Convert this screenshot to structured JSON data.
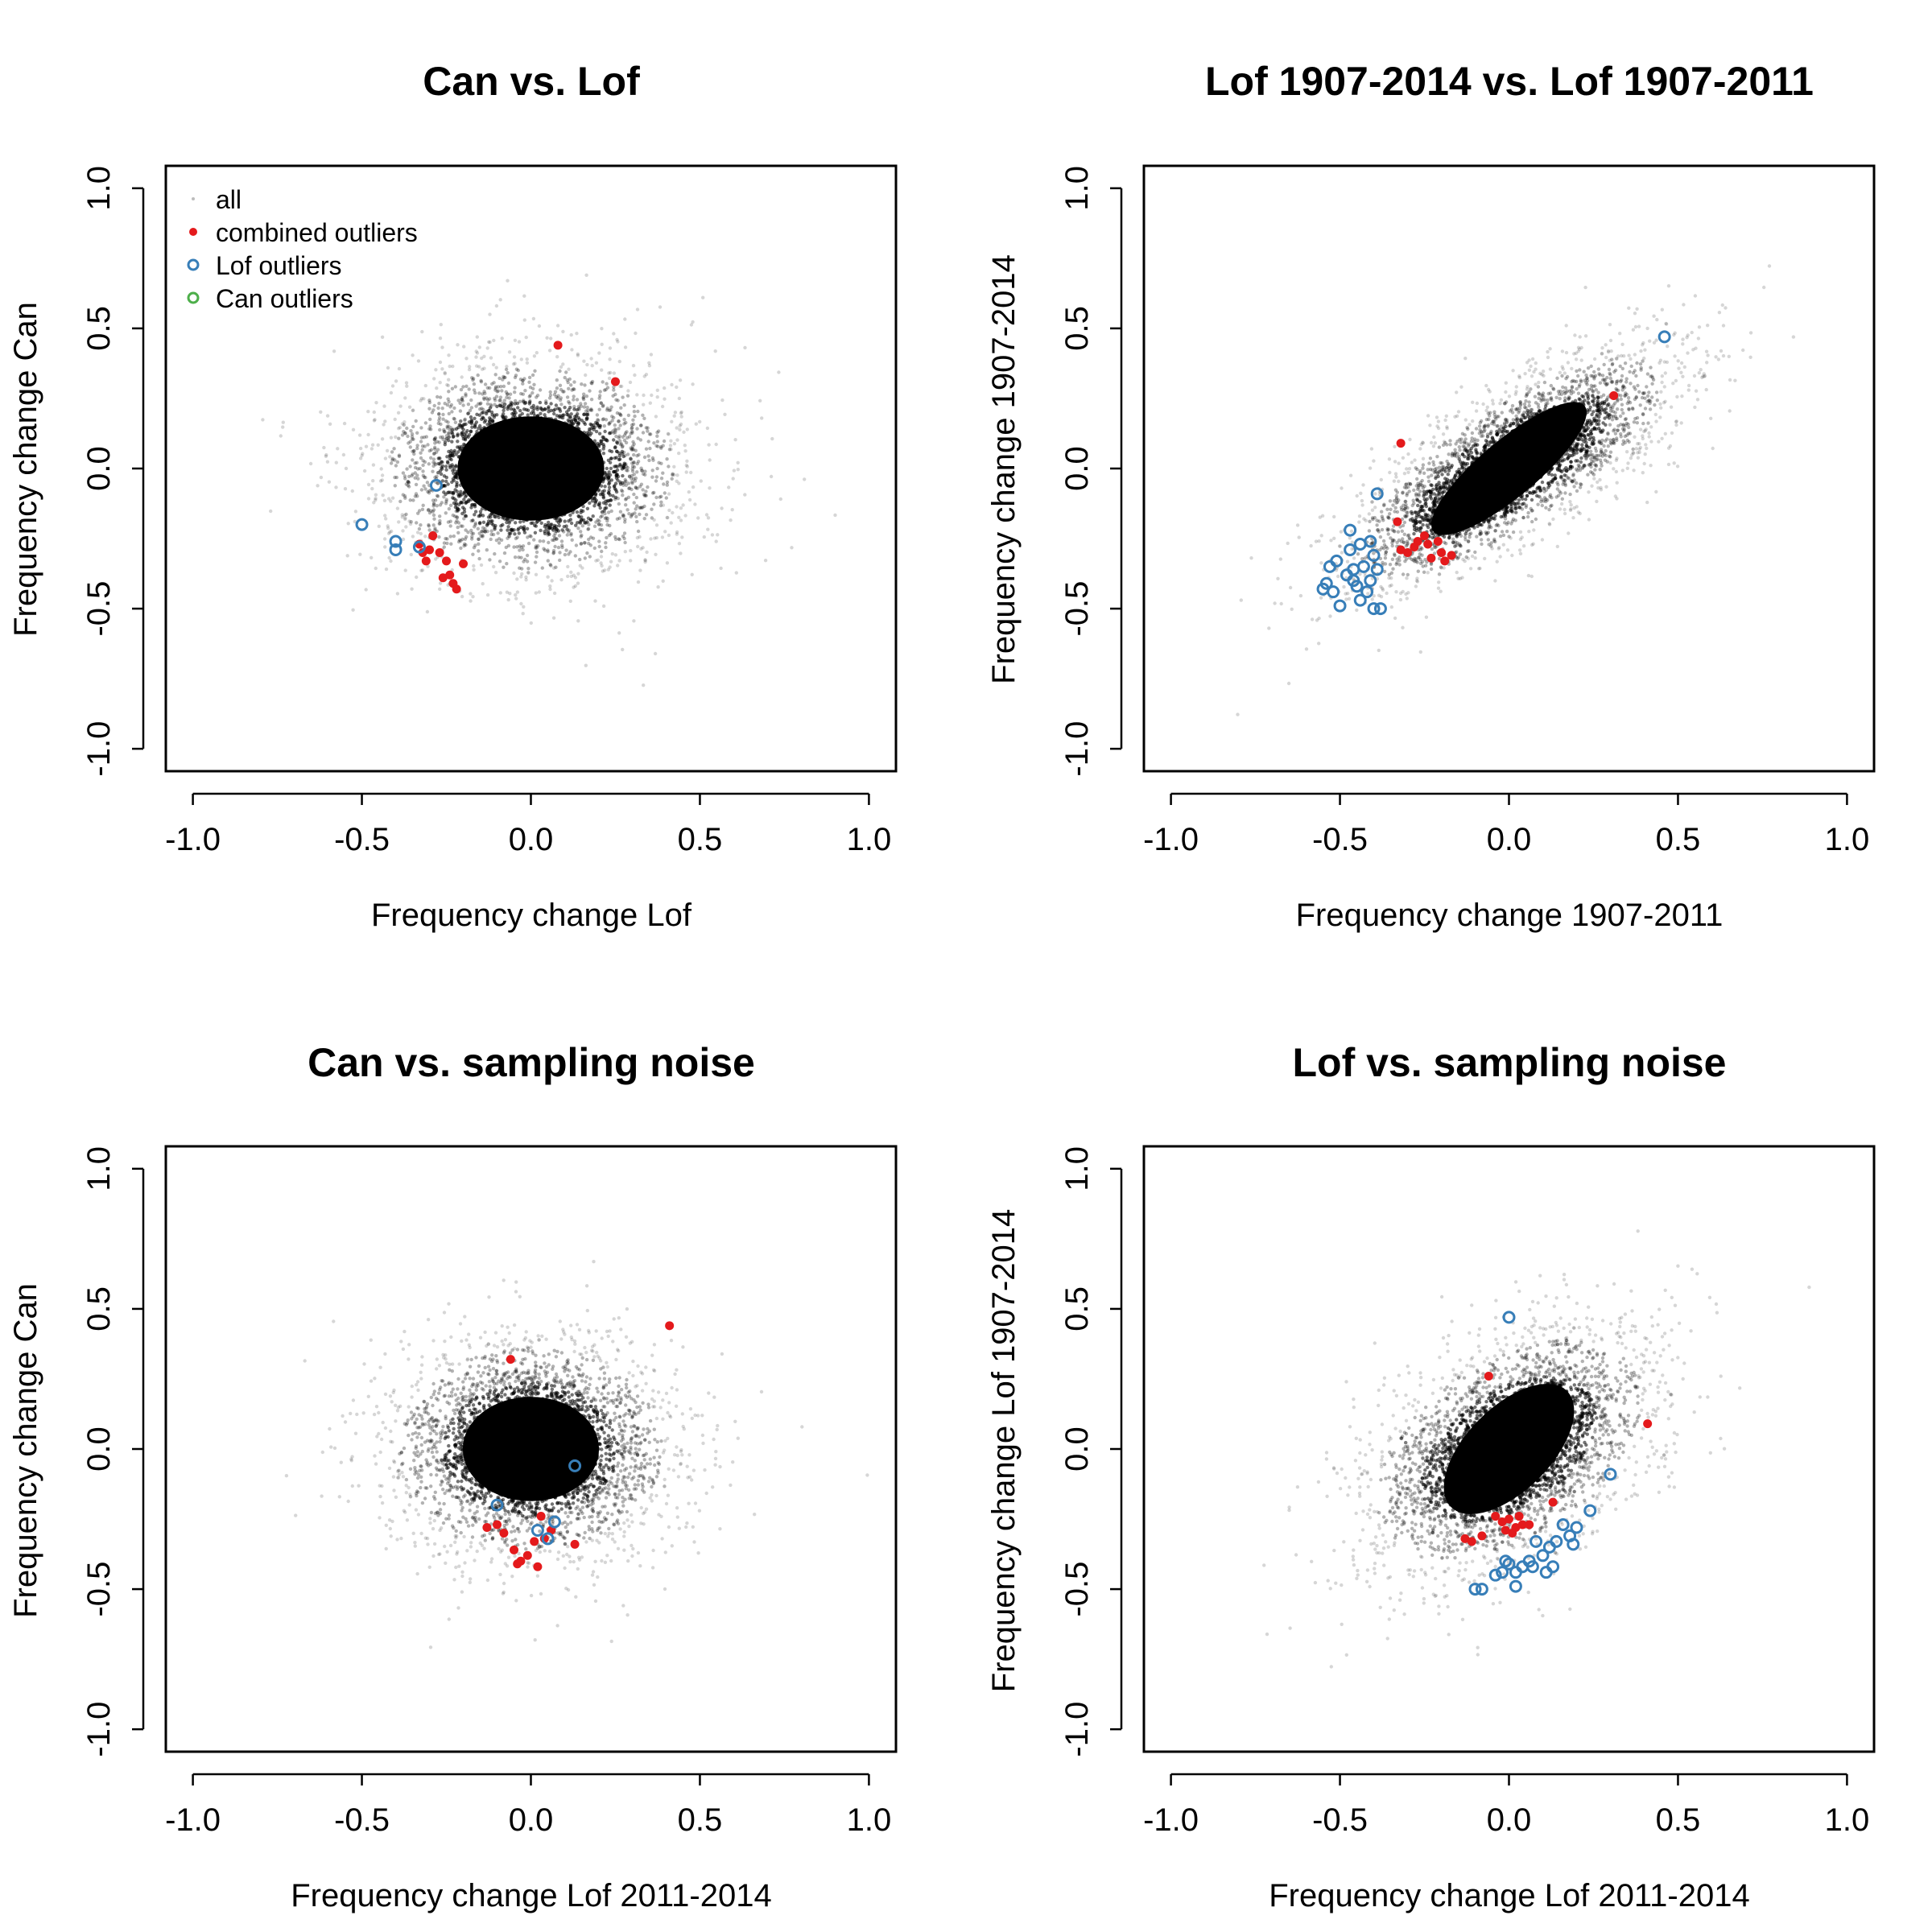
{
  "colors": {
    "all": "#000000",
    "combined": "#e41a1c",
    "lof": "#377eb8",
    "can": "#4daf4a"
  },
  "legend": {
    "placement": "top-left",
    "items": [
      {
        "label": "all",
        "style": "dot-gray"
      },
      {
        "label": "combined outliers",
        "style": "dot-red"
      },
      {
        "label": "Lof outliers",
        "style": "ring-blue"
      },
      {
        "label": "Can outliers",
        "style": "ring-green"
      }
    ]
  },
  "chart_data": [
    {
      "type": "scatter",
      "title": "Can vs. Lof",
      "xlabel": "Frequency change Lof",
      "ylabel": "Frequency change Can",
      "xlim": [
        -1,
        1
      ],
      "ylim": [
        -1,
        1
      ],
      "xticks": [
        "-1.0",
        "-0.5",
        "0.0",
        "0.5",
        "1.0"
      ],
      "yticks": [
        "-1.0",
        "-0.5",
        "0.0",
        "0.5",
        "1.0"
      ],
      "grid": false,
      "legend": true,
      "cloud": {
        "cx": 0.0,
        "cy": 0.0,
        "sx": 0.14,
        "sy": 0.12,
        "corr": 0.0
      },
      "combined_outliers": [
        [
          0.08,
          0.44
        ],
        [
          0.25,
          0.31
        ],
        [
          -0.3,
          -0.29
        ],
        [
          -0.32,
          -0.3
        ],
        [
          -0.29,
          -0.24
        ],
        [
          -0.27,
          -0.3
        ],
        [
          -0.25,
          -0.33
        ],
        [
          -0.24,
          -0.38
        ],
        [
          -0.26,
          -0.39
        ],
        [
          -0.23,
          -0.41
        ],
        [
          -0.22,
          -0.43
        ],
        [
          -0.2,
          -0.34
        ],
        [
          -0.33,
          -0.27
        ],
        [
          -0.31,
          -0.33
        ]
      ],
      "lof_outliers": [
        [
          -0.5,
          -0.2
        ],
        [
          -0.4,
          -0.26
        ],
        [
          -0.4,
          -0.29
        ],
        [
          -0.28,
          -0.06
        ],
        [
          -0.33,
          -0.28
        ]
      ],
      "can_outliers": []
    },
    {
      "type": "scatter",
      "title": "Lof 1907-2014 vs. Lof 1907-2011",
      "xlabel": "Frequency change 1907-2011",
      "ylabel": "Frequency change 1907-2014",
      "xlim": [
        -1,
        1
      ],
      "ylim": [
        -1,
        1
      ],
      "xticks": [
        "-1.0",
        "-0.5",
        "0.0",
        "0.5",
        "1.0"
      ],
      "yticks": [
        "-1.0",
        "-0.5",
        "0.0",
        "0.5",
        "1.0"
      ],
      "grid": false,
      "legend": false,
      "cloud": {
        "cx": 0.0,
        "cy": 0.0,
        "sx": 0.15,
        "sy": 0.13,
        "corr": 0.78
      },
      "combined_outliers": [
        [
          -0.32,
          0.09
        ],
        [
          0.31,
          0.26
        ],
        [
          -0.33,
          -0.19
        ],
        [
          -0.32,
          -0.29
        ],
        [
          -0.3,
          -0.3
        ],
        [
          -0.27,
          -0.26
        ],
        [
          -0.25,
          -0.24
        ],
        [
          -0.24,
          -0.27
        ],
        [
          -0.23,
          -0.32
        ],
        [
          -0.21,
          -0.26
        ],
        [
          -0.2,
          -0.3
        ],
        [
          -0.19,
          -0.33
        ],
        [
          -0.17,
          -0.31
        ],
        [
          -0.28,
          -0.28
        ]
      ],
      "lof_outliers": [
        [
          0.46,
          0.47
        ],
        [
          -0.39,
          -0.09
        ],
        [
          -0.47,
          -0.22
        ],
        [
          -0.47,
          -0.29
        ],
        [
          -0.44,
          -0.27
        ],
        [
          -0.41,
          -0.26
        ],
        [
          -0.4,
          -0.31
        ],
        [
          -0.43,
          -0.35
        ],
        [
          -0.46,
          -0.36
        ],
        [
          -0.48,
          -0.38
        ],
        [
          -0.51,
          -0.33
        ],
        [
          -0.53,
          -0.35
        ],
        [
          -0.55,
          -0.43
        ],
        [
          -0.52,
          -0.44
        ],
        [
          -0.54,
          -0.41
        ],
        [
          -0.5,
          -0.49
        ],
        [
          -0.45,
          -0.42
        ],
        [
          -0.42,
          -0.44
        ],
        [
          -0.4,
          -0.5
        ],
        [
          -0.38,
          -0.5
        ],
        [
          -0.44,
          -0.47
        ],
        [
          -0.41,
          -0.4
        ],
        [
          -0.39,
          -0.36
        ],
        [
          -0.46,
          -0.4
        ]
      ],
      "can_outliers": []
    },
    {
      "type": "scatter",
      "title": "Can vs. sampling noise",
      "xlabel": "Frequency change Lof 2011-2014",
      "ylabel": "Frequency change Can",
      "xlim": [
        -1,
        1
      ],
      "ylim": [
        -1,
        1
      ],
      "xticks": [
        "-1.0",
        "-0.5",
        "0.0",
        "0.5",
        "1.0"
      ],
      "yticks": [
        "-1.0",
        "-0.5",
        "0.0",
        "0.5",
        "1.0"
      ],
      "grid": false,
      "legend": false,
      "cloud": {
        "cx": 0.0,
        "cy": 0.0,
        "sx": 0.13,
        "sy": 0.12,
        "corr": 0.0
      },
      "combined_outliers": [
        [
          0.41,
          0.44
        ],
        [
          -0.06,
          0.32
        ],
        [
          -0.13,
          -0.28
        ],
        [
          -0.1,
          -0.27
        ],
        [
          -0.08,
          -0.3
        ],
        [
          -0.05,
          -0.36
        ],
        [
          -0.03,
          -0.4
        ],
        [
          -0.01,
          -0.38
        ],
        [
          0.01,
          -0.33
        ],
        [
          0.03,
          -0.24
        ],
        [
          0.04,
          -0.32
        ],
        [
          0.06,
          -0.29
        ],
        [
          0.02,
          -0.42
        ],
        [
          0.13,
          -0.34
        ],
        [
          -0.04,
          -0.41
        ]
      ],
      "lof_outliers": [
        [
          0.13,
          -0.06
        ],
        [
          -0.1,
          -0.2
        ],
        [
          0.02,
          -0.29
        ],
        [
          0.07,
          -0.26
        ],
        [
          0.05,
          -0.32
        ]
      ],
      "can_outliers": []
    },
    {
      "type": "scatter",
      "title": "Lof vs. sampling noise",
      "xlabel": "Frequency change Lof 2011-2014",
      "ylabel": "Frequency change Lof 1907-2014",
      "xlim": [
        -1,
        1
      ],
      "ylim": [
        -1,
        1
      ],
      "xticks": [
        "-1.0",
        "-0.5",
        "0.0",
        "0.5",
        "1.0"
      ],
      "yticks": [
        "-1.0",
        "-0.5",
        "0.0",
        "0.5",
        "1.0"
      ],
      "grid": false,
      "legend": false,
      "cloud": {
        "cx": 0.0,
        "cy": 0.0,
        "sx": 0.13,
        "sy": 0.13,
        "corr": 0.45
      },
      "combined_outliers": [
        [
          0.41,
          0.09
        ],
        [
          -0.06,
          0.26
        ],
        [
          -0.13,
          -0.32
        ],
        [
          -0.11,
          -0.33
        ],
        [
          -0.08,
          -0.31
        ],
        [
          -0.04,
          -0.24
        ],
        [
          -0.02,
          -0.26
        ],
        [
          0.0,
          -0.25
        ],
        [
          0.02,
          -0.28
        ],
        [
          0.03,
          -0.24
        ],
        [
          0.04,
          -0.27
        ],
        [
          0.01,
          -0.3
        ],
        [
          -0.01,
          -0.29
        ],
        [
          0.13,
          -0.19
        ],
        [
          0.06,
          -0.27
        ]
      ],
      "lof_outliers": [
        [
          0.0,
          0.47
        ],
        [
          0.3,
          -0.09
        ],
        [
          0.24,
          -0.22
        ],
        [
          0.2,
          -0.28
        ],
        [
          0.18,
          -0.31
        ],
        [
          0.16,
          -0.27
        ],
        [
          0.14,
          -0.33
        ],
        [
          0.12,
          -0.35
        ],
        [
          0.1,
          -0.38
        ],
        [
          0.08,
          -0.33
        ],
        [
          0.06,
          -0.4
        ],
        [
          0.04,
          -0.42
        ],
        [
          0.02,
          -0.44
        ],
        [
          0.0,
          -0.41
        ],
        [
          -0.02,
          -0.44
        ],
        [
          -0.04,
          -0.45
        ],
        [
          -0.08,
          -0.5
        ],
        [
          -0.1,
          -0.5
        ],
        [
          0.02,
          -0.49
        ],
        [
          0.11,
          -0.44
        ],
        [
          0.13,
          -0.42
        ],
        [
          0.19,
          -0.34
        ],
        [
          0.07,
          -0.42
        ],
        [
          -0.01,
          -0.4
        ]
      ],
      "can_outliers": []
    }
  ]
}
